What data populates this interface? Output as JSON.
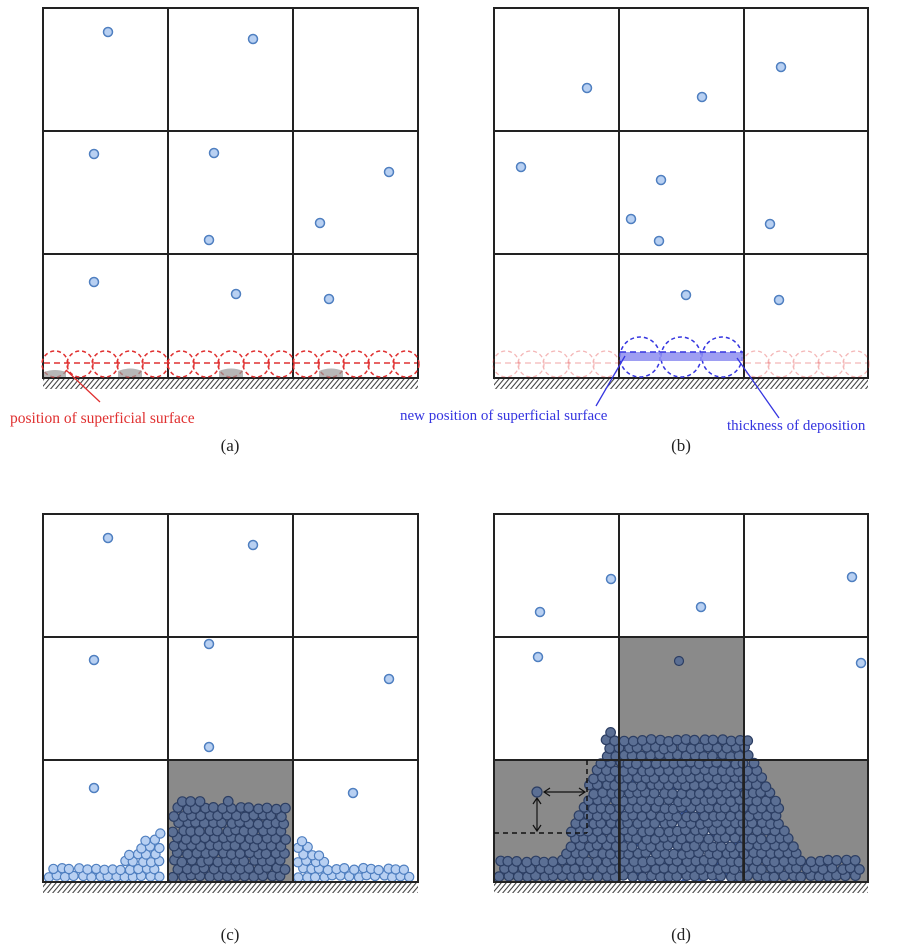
{
  "panels": [
    {
      "id": "a",
      "caption": "(a)"
    },
    {
      "id": "b",
      "caption": "(b)"
    },
    {
      "id": "c",
      "caption": "(c)"
    },
    {
      "id": "d",
      "caption": "(d)"
    }
  ],
  "annotations": {
    "a_surface": "position of superficial surface",
    "b_new_surface": "new position of superficial surface",
    "b_thickness": "thickness of deposition"
  },
  "colors": {
    "particle_fill": "#b8d0f2",
    "particle_stroke": "#4f7fc0",
    "dark_particle_fill": "#5b6f94",
    "dark_particle_stroke": "#2c3e63",
    "grey_cell": "#8a8a8a",
    "red": "#e03030",
    "blue": "#3535e0",
    "hatch_blue": "#3d5ea8"
  }
}
